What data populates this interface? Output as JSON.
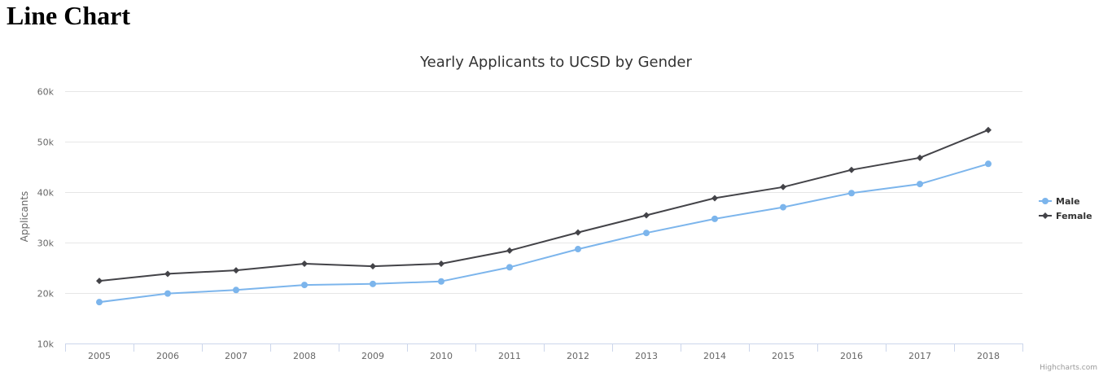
{
  "page": {
    "heading": "Line Chart"
  },
  "chart_data": {
    "type": "line",
    "title": "Yearly Applicants to UCSD by Gender",
    "xlabel": "",
    "ylabel": "Applicants",
    "categories": [
      "2005",
      "2006",
      "2007",
      "2008",
      "2009",
      "2010",
      "2011",
      "2012",
      "2013",
      "2014",
      "2015",
      "2016",
      "2017",
      "2018"
    ],
    "y_ticks": [
      10000,
      20000,
      30000,
      40000,
      50000,
      60000
    ],
    "y_tick_labels": [
      "10k",
      "20k",
      "30k",
      "40k",
      "50k",
      "60k"
    ],
    "ylim": [
      10000,
      60000
    ],
    "grid": true,
    "legend_position": "right",
    "series": [
      {
        "name": "Male",
        "color": "#7cb5ec",
        "marker": "circle",
        "values": [
          18200,
          19900,
          20600,
          21600,
          21800,
          22300,
          25100,
          28700,
          31900,
          34700,
          37000,
          39800,
          41600,
          45600
        ]
      },
      {
        "name": "Female",
        "color": "#434348",
        "marker": "diamond",
        "values": [
          22400,
          23800,
          24500,
          25800,
          25300,
          25800,
          28400,
          32000,
          35400,
          38800,
          41000,
          44400,
          46800,
          52300
        ]
      }
    ],
    "credits": "Highcharts.com"
  }
}
